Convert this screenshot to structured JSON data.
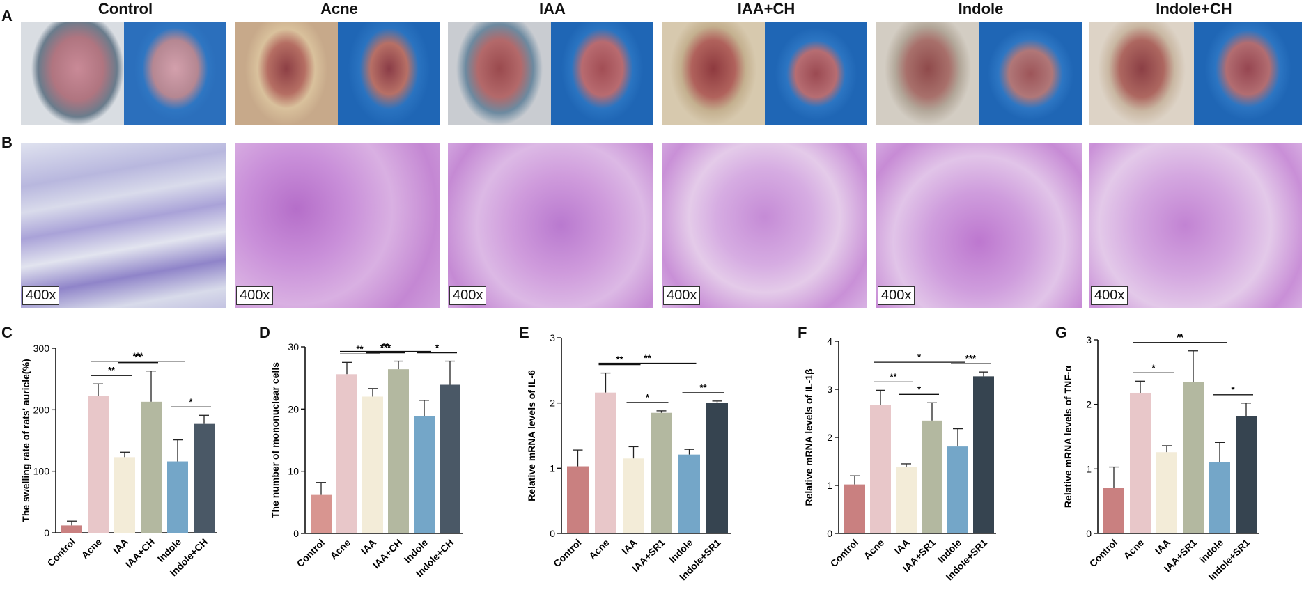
{
  "panel_letters": {
    "A": "A",
    "B": "B",
    "C": "C",
    "D": "D",
    "E": "E",
    "F": "F",
    "G": "G"
  },
  "group_titles": [
    "Control",
    "Acne",
    "IAA",
    "IAA+CH",
    "Indole",
    "Indole+CH"
  ],
  "magnification_label": "400x",
  "chart_data": [
    {
      "panel": "C",
      "type": "bar",
      "categories": [
        "Control",
        "Acne",
        "IAA",
        "IAA+CH",
        "Indole",
        "Indole+CH"
      ],
      "values": [
        12,
        222,
        123,
        213,
        116,
        177
      ],
      "errors": [
        7,
        20,
        8,
        50,
        35,
        14
      ],
      "ylabel": "The swelling rate of rats' auricle(%)",
      "ylim": [
        0,
        300
      ],
      "yticks": [
        0,
        100,
        200,
        300
      ],
      "colors": [
        "#c98080",
        "#e8c7c9",
        "#f3ecd8",
        "#b3b8a0",
        "#74a6c8",
        "#4a5866"
      ],
      "significance": [
        {
          "from": 1,
          "to": 4,
          "label": "***"
        },
        {
          "from": 2,
          "to": 3,
          "label": "**"
        },
        {
          "from": 1,
          "to": 2,
          "label": "**"
        },
        {
          "from": 4,
          "to": 5,
          "label": "*"
        }
      ]
    },
    {
      "panel": "D",
      "type": "bar",
      "categories": [
        "Control",
        "Acne",
        "IAA",
        "IAA+CH",
        "Indole",
        "Indole+CH"
      ],
      "values": [
        6.2,
        25.6,
        22.0,
        26.4,
        18.9,
        23.9
      ],
      "errors": [
        2.0,
        1.9,
        1.3,
        1.3,
        2.5,
        3.8
      ],
      "ylabel": "The number of mononuclear cells",
      "ylim": [
        0,
        30
      ],
      "yticks": [
        0,
        10,
        20,
        30
      ],
      "colors": [
        "#d89590",
        "#e8c7c9",
        "#f3ecd8",
        "#b3b8a0",
        "#74a6c8",
        "#4a5866"
      ],
      "significance": [
        {
          "from": 1,
          "to": 4,
          "label": "**"
        },
        {
          "from": 2,
          "to": 3,
          "label": "***"
        },
        {
          "from": 1,
          "to": 2,
          "label": "**"
        },
        {
          "from": 4,
          "to": 5,
          "label": "*"
        }
      ]
    },
    {
      "panel": "E",
      "type": "bar",
      "categories": [
        "Control",
        "Acne",
        "IAA",
        "IAA+SR1",
        "Indole",
        "Indole+SR1"
      ],
      "values": [
        1.03,
        2.16,
        1.15,
        1.85,
        1.21,
        2.0
      ],
      "errors": [
        0.25,
        0.3,
        0.18,
        0.03,
        0.08,
        0.03
      ],
      "ylabel": "Relative mRNA levels of IL-6",
      "ylim": [
        0,
        3
      ],
      "yticks": [
        0,
        1,
        2,
        3
      ],
      "colors": [
        "#c98080",
        "#e8c7c9",
        "#f3ecd8",
        "#b3b8a0",
        "#74a6c8",
        "#364450"
      ],
      "significance": [
        {
          "from": 1,
          "to": 4,
          "label": "**"
        },
        {
          "from": 1,
          "to": 2,
          "label": "**"
        },
        {
          "from": 2,
          "to": 3,
          "label": "*"
        },
        {
          "from": 4,
          "to": 5,
          "label": "**"
        }
      ]
    },
    {
      "panel": "F",
      "type": "bar",
      "categories": [
        "Control",
        "Acne",
        "IAA",
        "IAA+SR1",
        "Indole",
        "Indole+SR1"
      ],
      "values": [
        1.02,
        2.68,
        1.39,
        2.35,
        1.81,
        3.27
      ],
      "errors": [
        0.18,
        0.3,
        0.06,
        0.37,
        0.37,
        0.09
      ],
      "ylabel": "Relative mRNA levels of IL-1β",
      "ylim": [
        0,
        4
      ],
      "yticks": [
        0,
        1,
        2,
        3,
        4
      ],
      "colors": [
        "#c98080",
        "#e8c7c9",
        "#f3ecd8",
        "#b3b8a0",
        "#74a6c8",
        "#364450"
      ],
      "significance": [
        {
          "from": 1,
          "to": 4,
          "label": "*"
        },
        {
          "from": 4,
          "to": 5,
          "label": "***"
        },
        {
          "from": 1,
          "to": 2,
          "label": "**"
        },
        {
          "from": 2,
          "to": 3,
          "label": "*"
        }
      ]
    },
    {
      "panel": "G",
      "type": "bar",
      "categories": [
        "Control",
        "Acne",
        "IAA",
        "IAA+SR1",
        "indole",
        "Indole+SR1"
      ],
      "values": [
        0.71,
        2.18,
        1.26,
        2.35,
        1.11,
        1.82
      ],
      "errors": [
        0.32,
        0.18,
        0.1,
        0.48,
        0.3,
        0.2
      ],
      "ylabel": "Relative mRNA levels of TNF-α",
      "ylim": [
        0,
        3
      ],
      "yticks": [
        0,
        1,
        2,
        3
      ],
      "colors": [
        "#c98080",
        "#e8c7c9",
        "#f3ecd8",
        "#b3b8a0",
        "#74a6c8",
        "#364450"
      ],
      "significance": [
        {
          "from": 1,
          "to": 4,
          "label": "**"
        },
        {
          "from": 2,
          "to": 3,
          "label": "*"
        },
        {
          "from": 1,
          "to": 2,
          "label": "*"
        },
        {
          "from": 4,
          "to": 5,
          "label": "*"
        }
      ]
    }
  ]
}
